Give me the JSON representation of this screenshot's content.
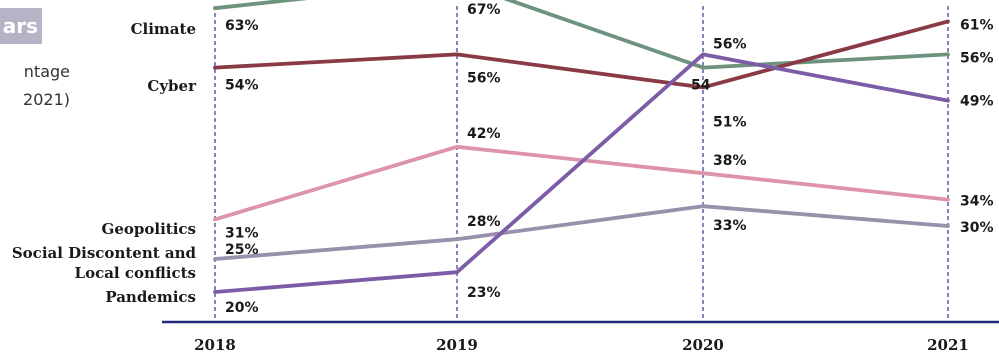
{
  "header_fragments": {
    "badge_text": "ars",
    "subtitle_line1": "ntage",
    "subtitle_line2": "2021)"
  },
  "colors": {
    "axis": "#1f2a7a",
    "guide": "#2d3590",
    "badge": "#b7b3c7"
  },
  "chart_data": {
    "type": "line",
    "x": [
      "2018",
      "2019",
      "2020",
      "2021"
    ],
    "ylim": [
      0,
      70
    ],
    "grid": false,
    "legend": "none",
    "series": [
      {
        "name": "Climate",
        "values": [
          63,
          67,
          54,
          56
        ],
        "labels": [
          "63%",
          "67%",
          "54",
          "56%"
        ],
        "color": "#6d927e"
      },
      {
        "name": "Cyber",
        "values": [
          54,
          56,
          51,
          61
        ],
        "labels": [
          "54%",
          "56%",
          "51%",
          "61%"
        ],
        "color": "#8a3a44"
      },
      {
        "name": "Geopolitics",
        "values": [
          31,
          42,
          38,
          34
        ],
        "labels": [
          "31%",
          "42%",
          "38%",
          "34%"
        ],
        "color": "#dd94a8"
      },
      {
        "name": "Social Discontent and Local conflicts",
        "display_lines": [
          "Social Discontent and",
          "Local conflicts"
        ],
        "values": [
          25,
          28,
          33,
          30
        ],
        "labels": [
          "25%",
          "28%",
          "33%",
          "30%"
        ],
        "color": "#9891ab"
      },
      {
        "name": "Pandemics",
        "values": [
          20,
          23,
          56,
          49
        ],
        "labels": [
          "20%",
          "23%",
          "56%",
          "49%"
        ],
        "color": "#7c5ca6"
      }
    ]
  }
}
